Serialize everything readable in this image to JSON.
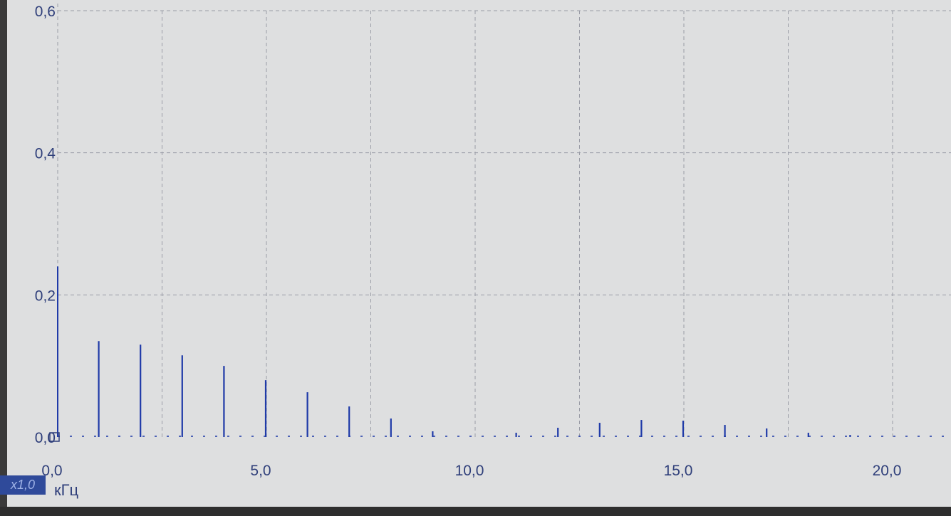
{
  "chart_data": {
    "type": "bar",
    "title": "",
    "xlabel": "кГц",
    "ylabel": "",
    "xlim": [
      0,
      20.5
    ],
    "ylim": [
      0,
      0.6
    ],
    "x_ticks": [
      "0,0",
      "5,0",
      "10,0",
      "15,0",
      "20,0"
    ],
    "x_tick_values": [
      0,
      5,
      10,
      15,
      20
    ],
    "y_ticks": [
      "0,0",
      "0,2",
      "0,4",
      "0,6"
    ],
    "y_tick_values": [
      0,
      0.2,
      0.4,
      0.6
    ],
    "grid": true,
    "color": "#1f3aa8",
    "series": [
      {
        "x": [
          0.0,
          1.0,
          2.0,
          3.0,
          4.0,
          5.0,
          6.0,
          7.0,
          8.0,
          9.0,
          11.0,
          12.0,
          13.0,
          14.0,
          15.0,
          16.0,
          17.0,
          18.0,
          19.0
        ],
        "values": [
          0.24,
          0.135,
          0.13,
          0.115,
          0.1,
          0.08,
          0.063,
          0.043,
          0.026,
          0.008,
          0.006,
          0.013,
          0.02,
          0.024,
          0.023,
          0.017,
          0.012,
          0.006,
          0.003
        ]
      }
    ]
  },
  "scale_badge": "x1,0",
  "unit_label": "кГц",
  "origin_marker_label": "0,0"
}
